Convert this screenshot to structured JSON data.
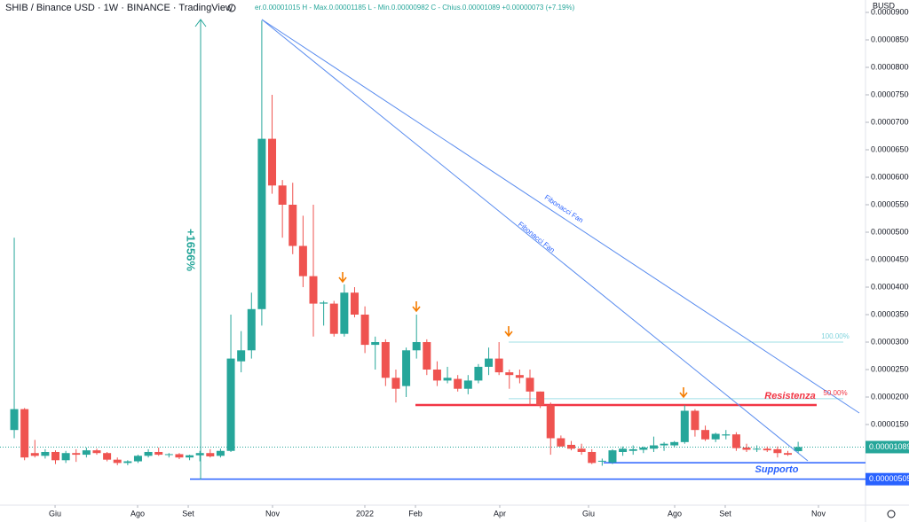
{
  "chart_data": {
    "type": "candlestick",
    "header": {
      "symbol": "SHIB / Binance USD · 1W · BINANCE · TradingView",
      "ohlc_text": "er.0.00001015 H - Max.0.00001185 L - Min.0.00000982 C - Chius.0.00001089 +0.00000073 (+7.19%)"
    },
    "currency": "BUSD",
    "up_color": "#26a69a",
    "down_color": "#ef5350",
    "open": [
      1.4e-05,
      1.78e-05,
      9.8e-06,
      9.3e-06,
      1e-05,
      8.5e-06,
      9.8e-06,
      9.5e-06,
      1.03e-05,
      9.8e-06,
      8.6e-06,
      8e-06,
      8.3e-06,
      9.3e-06,
      1e-05,
      9.5e-06,
      9.6e-06,
      9e-06,
      9.4e-06,
      9.8e-06,
      9.3e-06,
      1.02e-05,
      2.65e-05,
      2.85e-05,
      3.6e-05,
      6.7e-05,
      5.85e-05,
      5.5e-05,
      4.75e-05,
      4.2e-05,
      3.7e-05,
      3.7e-05,
      3.15e-05,
      3.9e-05,
      3.5e-05,
      2.95e-05,
      3e-05,
      2.35e-05,
      2.2e-05,
      2.85e-05,
      3e-05,
      2.5e-05,
      2.3e-05,
      2.33e-05,
      2.15e-05,
      2.3e-05,
      2.55e-05,
      2.7e-05,
      2.45e-05,
      2.4e-05,
      2.35e-05,
      2.1e-05,
      1.85e-05,
      1.25e-05,
      1.13e-05,
      1.06e-05,
      1e-05,
      8.3e-06,
      8.1e-06,
      1e-05,
      1.02e-05,
      1.04e-05,
      1.06e-05,
      1.12e-05,
      1.12e-05,
      1.18e-05,
      1.75e-05,
      1.4e-05,
      1.23e-05,
      1.3e-05,
      1.32e-05,
      1.08e-05,
      1.05e-05,
      1.06e-05,
      1.05e-05,
      9.8e-06,
      1.015e-05
    ],
    "high": [
      4.9e-05,
      1.8e-05,
      1.22e-05,
      1.05e-05,
      1.03e-05,
      1.02e-05,
      1.05e-05,
      1.08e-05,
      1.06e-05,
      1e-05,
      9e-06,
      8.5e-06,
      9.5e-06,
      1.05e-05,
      1.08e-05,
      9.8e-06,
      9.8e-06,
      9.5e-06,
      1.02e-05,
      1.05e-05,
      1.06e-05,
      3.5e-05,
      3.2e-05,
      3.9e-05,
      8.85e-05,
      7.5e-05,
      5.95e-05,
      5.9e-05,
      5.3e-05,
      5.5e-05,
      3.75e-05,
      3.75e-05,
      4.05e-05,
      4e-05,
      3.65e-05,
      3.1e-05,
      3.05e-05,
      2.5e-05,
      2.9e-05,
      3.5e-05,
      3.05e-05,
      2.65e-05,
      2.55e-05,
      2.4e-05,
      2.4e-05,
      2.6e-05,
      2.9e-05,
      3e-05,
      2.5e-05,
      2.5e-05,
      2.5e-05,
      2.1e-05,
      1.9e-05,
      1.3e-05,
      1.2e-05,
      1.15e-05,
      1.05e-05,
      8.8e-06,
      1.05e-05,
      1.1e-05,
      1.12e-05,
      1.1e-05,
      1.28e-05,
      1.18e-05,
      1.2e-05,
      1.85e-05,
      1.78e-05,
      1.48e-05,
      1.35e-05,
      1.4e-05,
      1.36e-05,
      1.15e-05,
      1.12e-05,
      1.1e-05,
      1.1e-05,
      1.02e-05,
      1.185e-05
    ],
    "low": [
      1.25e-05,
      8.5e-06,
      9e-06,
      8.8e-06,
      7.8e-06,
      8e-06,
      8.2e-06,
      9e-06,
      9.5e-06,
      8.3e-06,
      7.6e-06,
      7.6e-06,
      8e-06,
      9e-06,
      9.3e-06,
      9e-06,
      8.7e-06,
      8.5e-06,
      8.3e-06,
      9e-06,
      9e-06,
      1e-05,
      2.45e-05,
      2.7e-05,
      3.3e-05,
      5.7e-05,
      4.9e-05,
      4.6e-05,
      4e-05,
      3.1e-05,
      3.3e-05,
      3.1e-05,
      3.1e-05,
      3.45e-05,
      2.8e-05,
      2.5e-05,
      2.2e-05,
      1.9e-05,
      2e-05,
      2.7e-05,
      2.4e-05,
      2.2e-05,
      2.25e-05,
      2.1e-05,
      2.05e-05,
      2.25e-05,
      2.4e-05,
      2.4e-05,
      2.15e-05,
      2.25e-05,
      1.85e-05,
      1.8e-05,
      9.5e-06,
      1.1e-05,
      1.03e-05,
      9.5e-06,
      7.8e-06,
      7.5e-06,
      7.8e-06,
      9.3e-06,
      9.5e-06,
      9.8e-06,
      1e-05,
      1.02e-05,
      1.08e-05,
      1.15e-05,
      1.28e-05,
      1.2e-05,
      1.18e-05,
      1.23e-05,
      1.02e-05,
      1e-05,
      1e-05,
      1e-05,
      9e-06,
      9.3e-06,
      9.82e-06
    ],
    "close": [
      1.78e-05,
      9e-06,
      9.3e-06,
      1e-05,
      8.5e-06,
      9.8e-06,
      9.5e-06,
      1.03e-05,
      9.8e-06,
      8.6e-06,
      8e-06,
      8.3e-06,
      9.3e-06,
      1e-05,
      9.5e-06,
      9.6e-06,
      9e-06,
      9.4e-06,
      9.8e-06,
      9.2e-06,
      1.02e-05,
      2.7e-05,
      2.85e-05,
      3.6e-05,
      6.7e-05,
      5.85e-05,
      5.5e-05,
      4.75e-05,
      4.2e-05,
      3.7e-05,
      3.72e-05,
      3.15e-05,
      3.9e-05,
      3.5e-05,
      2.95e-05,
      3e-05,
      2.35e-05,
      2.15e-05,
      2.85e-05,
      3e-05,
      2.5e-05,
      2.3e-05,
      2.35e-05,
      2.15e-05,
      2.3e-05,
      2.55e-05,
      2.7e-05,
      2.45e-05,
      2.4e-05,
      2.35e-05,
      2.1e-05,
      1.85e-05,
      1.25e-05,
      1.1e-05,
      1.06e-05,
      1e-05,
      8e-06,
      8.4e-06,
      1.03e-05,
      1.06e-05,
      1.05e-05,
      1.08e-05,
      1.12e-05,
      1.15e-05,
      1.18e-05,
      1.75e-05,
      1.4e-05,
      1.23e-05,
      1.33e-05,
      1.32e-05,
      1.07e-05,
      1.04e-05,
      1.06e-05,
      1.03e-05,
      9.8e-06,
      9.5e-06,
      1.089e-05
    ],
    "xlim": [
      -1.38,
      82.53
    ],
    "xticks": [
      {
        "value": 3.96,
        "label": "Giu"
      },
      {
        "value": 11.96,
        "label": "Ago"
      },
      {
        "value": 16.87,
        "label": "Set"
      },
      {
        "value": 25.04,
        "label": "Nov"
      },
      {
        "value": 33.99,
        "label": "2022"
      },
      {
        "value": 38.9,
        "label": "Feb"
      },
      {
        "value": 47.07,
        "label": "Apr"
      },
      {
        "value": 55.68,
        "label": "Giu"
      },
      {
        "value": 64.03,
        "label": "Ago"
      },
      {
        "value": 68.93,
        "label": "Set"
      },
      {
        "value": 77.97,
        "label": "Nov"
      }
    ],
    "ylim": [
      3.2e-07,
      9.226e-05
    ],
    "yticks": [
      {
        "value": 1.5e-05,
        "label": "0.00001500"
      },
      {
        "value": 2e-05,
        "label": "0.00002000"
      },
      {
        "value": 2.5e-05,
        "label": "0.00002500"
      },
      {
        "value": 3e-05,
        "label": "0.00003000"
      },
      {
        "value": 3.5e-05,
        "label": "0.00003500"
      },
      {
        "value": 4e-05,
        "label": "0.00004000"
      },
      {
        "value": 4.5e-05,
        "label": "0.00004500"
      },
      {
        "value": 5e-05,
        "label": "0.00005000"
      },
      {
        "value": 5.5e-05,
        "label": "0.00005500"
      },
      {
        "value": 6e-05,
        "label": "0.00006000"
      },
      {
        "value": 6.5e-05,
        "label": "0.00006500"
      },
      {
        "value": 7e-05,
        "label": "0.00007000"
      },
      {
        "value": 7.5e-05,
        "label": "0.00007500"
      },
      {
        "value": 8e-05,
        "label": "0.00008000"
      },
      {
        "value": 8.5e-05,
        "label": "0.00008500"
      },
      {
        "value": 9e-05,
        "label": "0.00009000"
      }
    ],
    "last_price": {
      "value": 1.089e-05,
      "label": "0.00001089"
    },
    "support_price": {
      "value": 5.05e-06,
      "label": "0.00000505"
    },
    "resistance_level": 1.855e-05,
    "support_level": 8.05e-06,
    "fib_levels": [
      {
        "value": 3e-05,
        "label": "100.00%"
      },
      {
        "value": 1.97e-05,
        "label": "50.00%"
      }
    ],
    "annotations": {
      "measure": "+1656%",
      "fan_upper": "Fibonacci Fan",
      "fan_lower": "Fibonacci Fan",
      "resistance": "Resistenza",
      "support": "Supporto"
    }
  }
}
